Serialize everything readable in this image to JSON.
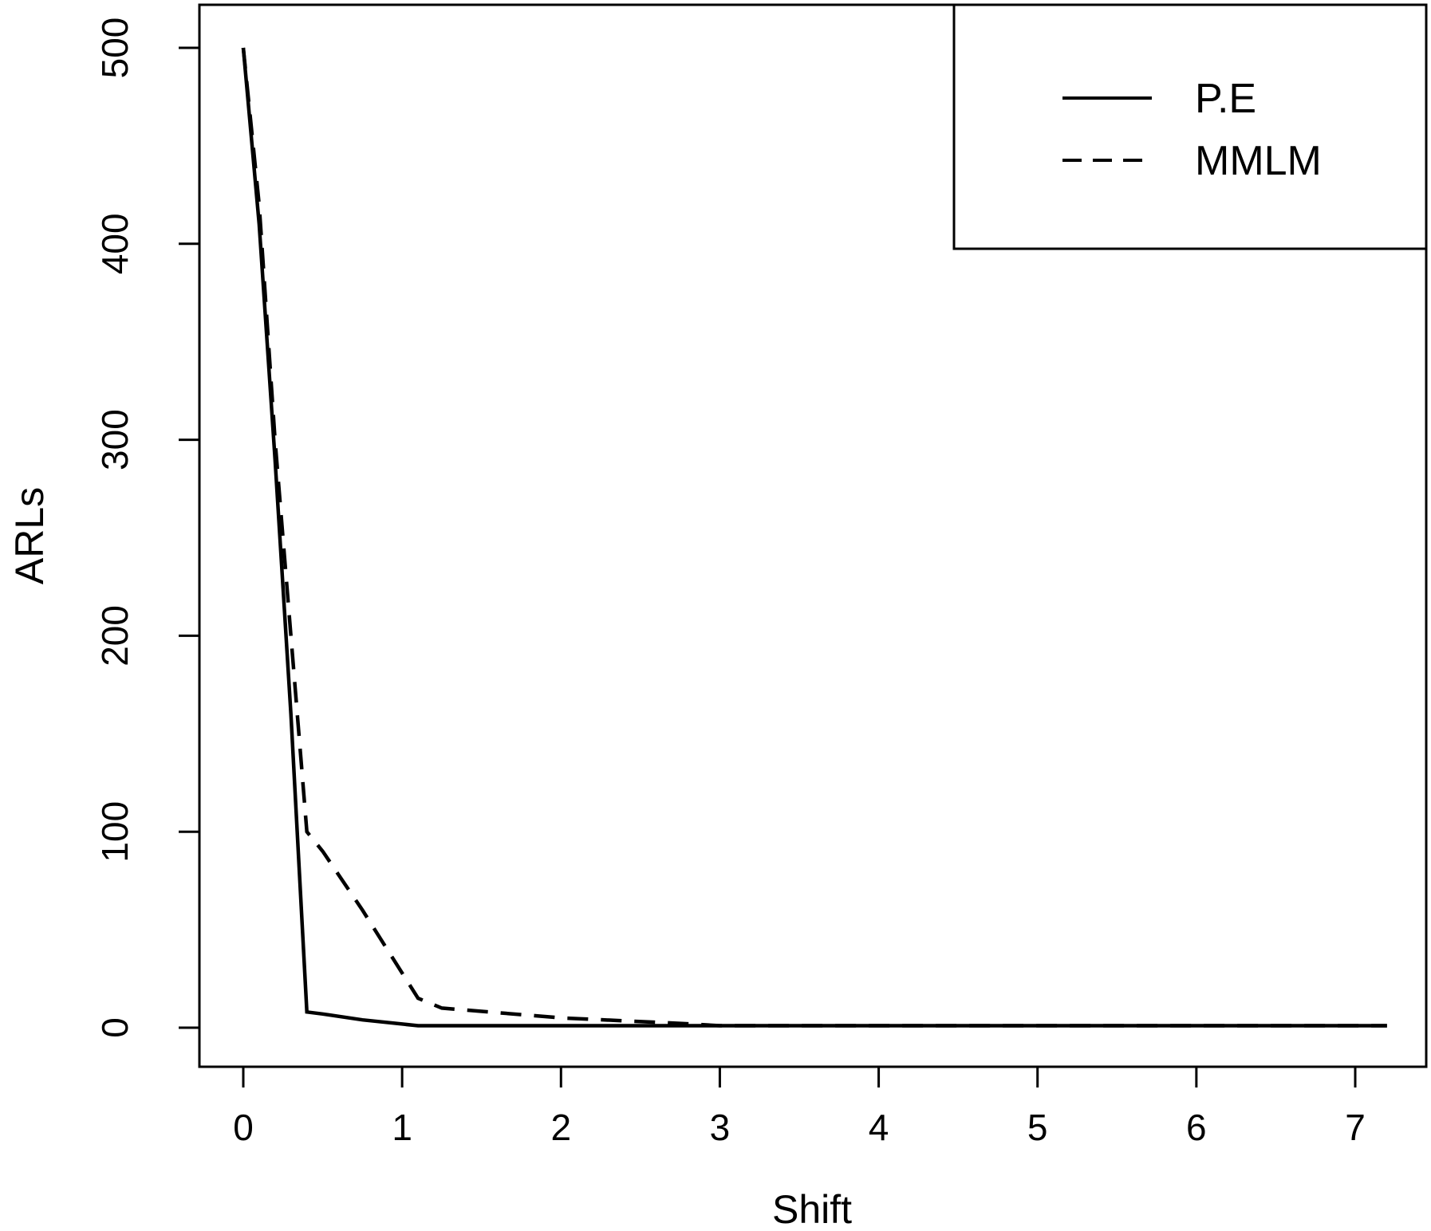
{
  "chart_data": {
    "type": "line",
    "title": "",
    "xlabel": "Shift",
    "ylabel": "ARLs",
    "xlim": [
      -0.3,
      7.5
    ],
    "ylim": [
      -20,
      520
    ],
    "x_ticks": [
      0,
      1,
      2,
      3,
      4,
      5,
      6,
      7
    ],
    "x_tick_labels": [
      "0",
      "1",
      "2",
      "3",
      "4",
      "5",
      "6",
      "7"
    ],
    "y_ticks": [
      0,
      100,
      200,
      300,
      400,
      500
    ],
    "y_tick_labels": [
      "0",
      "100",
      "200",
      "300",
      "400",
      "500"
    ],
    "grid": false,
    "legend_position": "top-right",
    "series": [
      {
        "name": "P.E",
        "line_style": "solid",
        "color": "#000000",
        "x": [
          0,
          0.1,
          0.2,
          0.3,
          0.4,
          0.5,
          0.75,
          1.1,
          1.5,
          2,
          3,
          4,
          5,
          6,
          7.2
        ],
        "y": [
          500,
          410,
          290,
          160,
          8,
          7,
          4,
          1,
          1,
          1,
          1,
          1,
          1,
          1,
          1
        ]
      },
      {
        "name": "MMLM",
        "line_style": "dashed",
        "color": "#000000",
        "x": [
          0,
          0.1,
          0.2,
          0.3,
          0.4,
          0.5,
          0.75,
          1.1,
          1.25,
          2,
          2.8,
          3,
          4,
          5,
          6,
          7.2
        ],
        "y": [
          500,
          420,
          300,
          200,
          100,
          90,
          60,
          15,
          10,
          5,
          2,
          1,
          1,
          1,
          1,
          1
        ]
      }
    ]
  }
}
